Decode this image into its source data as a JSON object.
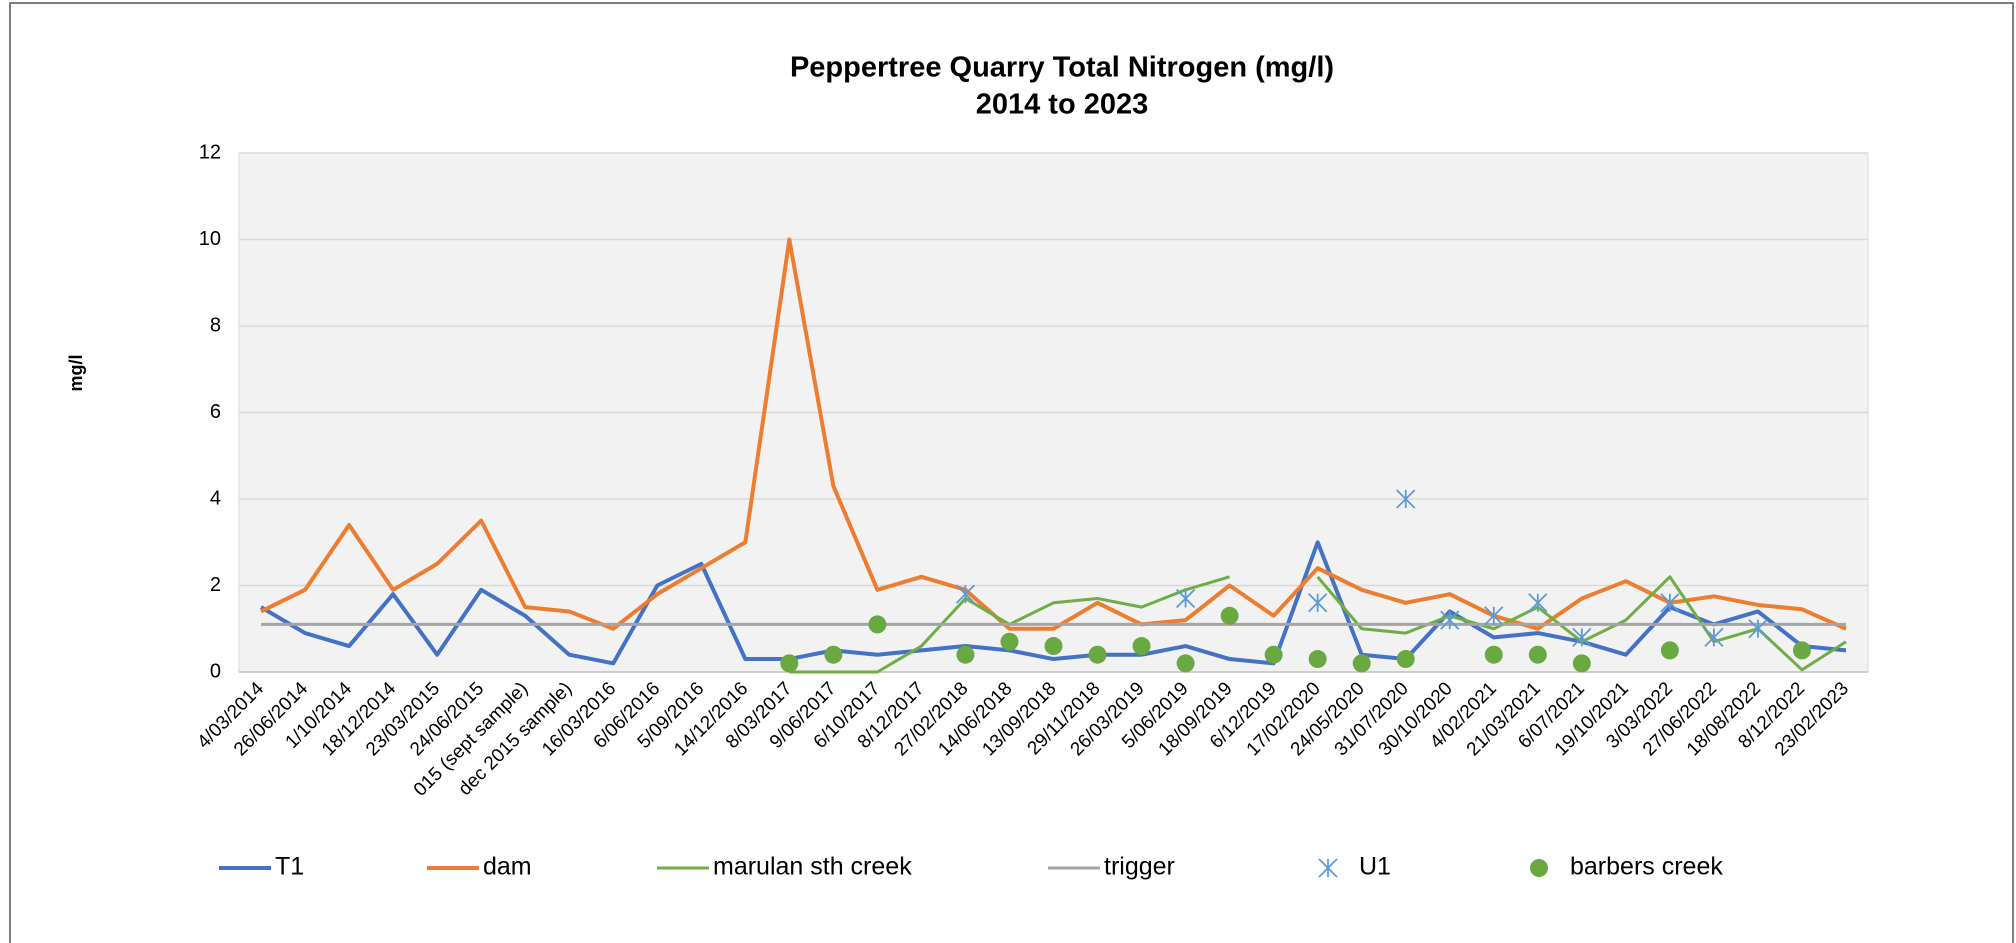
{
  "chart_data": {
    "type": "line",
    "title": "Peppertree Quarry Total Nitrogen  (mg/l)",
    "subtitle": "2014 to 2023",
    "y_label": "mg/l",
    "categories": [
      "4/03/2014",
      "26/06/2014",
      "1/10/2014",
      "18/12/2014",
      "23/03/2015",
      "24/06/2015",
      "015 (sept sample)",
      "dec 2015 sample)",
      "16/03/2016",
      "6/06/2016",
      "5/09/2016",
      "14/12/2016",
      "8/03/2017",
      "9/06/2017",
      "6/10/2017",
      "8/12/2017",
      "27/02/2018",
      "14/06/2018",
      "13/09/2018",
      "29/11/2018",
      "26/03/2019",
      "5/06/2019",
      "18/09/2019",
      "6/12/2019",
      "17/02/2020",
      "24/05/2020",
      "31/07/2020",
      "30/10/2020",
      "4/02/2021",
      "21/03/2021",
      "6/07/2021",
      "19/10/2021",
      "3/03/2022",
      "27/06/2022",
      "18/08/2022",
      "8/12/2022",
      "23/02/2023"
    ],
    "series": [
      {
        "name": "T1",
        "color": "#4472c4",
        "style": "line",
        "width": 4,
        "values": [
          1.5,
          0.9,
          0.6,
          1.8,
          0.4,
          1.9,
          1.3,
          0.4,
          0.2,
          2.0,
          2.5,
          0.3,
          0.3,
          0.5,
          0.4,
          0.5,
          0.6,
          0.5,
          0.3,
          0.4,
          0.4,
          0.6,
          0.3,
          0.2,
          3.0,
          0.4,
          0.3,
          1.4,
          0.8,
          0.9,
          0.7,
          0.4,
          1.5,
          1.1,
          1.4,
          0.6,
          0.5
        ]
      },
      {
        "name": "dam",
        "color": "#ed7d31",
        "style": "line",
        "width": 4,
        "values": [
          1.4,
          1.9,
          3.4,
          1.9,
          2.5,
          3.5,
          1.5,
          1.4,
          1.0,
          1.8,
          2.4,
          3.0,
          10,
          4.3,
          1.9,
          2.2,
          1.9,
          1.0,
          1.0,
          1.6,
          1.1,
          1.2,
          2.0,
          1.3,
          2.4,
          1.9,
          1.6,
          1.8,
          1.3,
          1.0,
          1.7,
          2.1,
          1.6,
          1.75,
          1.55,
          1.45,
          1.0
        ]
      },
      {
        "name": "marulan sth creek",
        "color": "#70ad47",
        "style": "line",
        "width": 3,
        "values": [
          null,
          null,
          null,
          null,
          null,
          null,
          null,
          null,
          null,
          null,
          null,
          null,
          0,
          0,
          0,
          0.6,
          1.7,
          1.1,
          1.6,
          1.7,
          1.5,
          1.9,
          2.2,
          null,
          2.2,
          1.0,
          0.9,
          1.3,
          1.0,
          1.5,
          0.7,
          1.2,
          2.2,
          0.7,
          1.0,
          0.05,
          0.7
        ]
      },
      {
        "name": "trigger",
        "color": "#a5a5a5",
        "style": "line",
        "width": 3,
        "values": [
          1.1,
          1.1,
          1.1,
          1.1,
          1.1,
          1.1,
          1.1,
          1.1,
          1.1,
          1.1,
          1.1,
          1.1,
          1.1,
          1.1,
          1.1,
          1.1,
          1.1,
          1.1,
          1.1,
          1.1,
          1.1,
          1.1,
          1.1,
          1.1,
          1.1,
          1.1,
          1.1,
          1.1,
          1.1,
          1.1,
          1.1,
          1.1,
          1.1,
          1.1,
          1.1,
          1.1,
          1.1
        ]
      },
      {
        "name": "U1",
        "color": "#5b9bd5",
        "style": "star",
        "values": [
          null,
          null,
          null,
          null,
          null,
          null,
          null,
          null,
          null,
          null,
          null,
          null,
          null,
          null,
          null,
          null,
          1.8,
          null,
          null,
          null,
          null,
          1.7,
          null,
          null,
          1.6,
          null,
          4.0,
          1.2,
          1.3,
          1.6,
          0.8,
          null,
          1.6,
          0.8,
          1.0,
          null,
          null
        ]
      },
      {
        "name": "barbers creek",
        "color": "#6aa842",
        "style": "circle",
        "values": [
          null,
          null,
          null,
          null,
          null,
          null,
          null,
          null,
          null,
          null,
          null,
          null,
          0.2,
          0.4,
          1.1,
          null,
          0.4,
          0.7,
          0.6,
          0.4,
          0.6,
          0.2,
          1.3,
          0.4,
          0.3,
          0.2,
          0.3,
          null,
          0.4,
          0.4,
          0.2,
          null,
          0.5,
          null,
          null,
          0.5,
          null
        ]
      }
    ],
    "ylim": [
      0,
      12
    ],
    "yticks": [
      0,
      2,
      4,
      6,
      8,
      10,
      12
    ],
    "grid": true,
    "legend": "bottom"
  }
}
